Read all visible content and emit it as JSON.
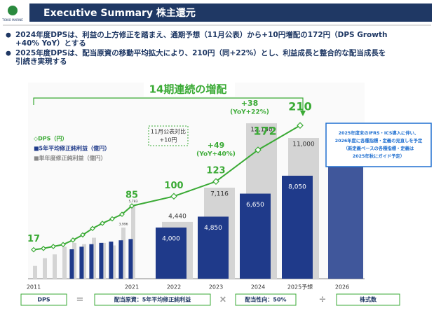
{
  "header": {
    "logo": "TOKIO MARINE",
    "title": "Executive Summary  株主還元"
  },
  "bullets": [
    [
      "2024年度DPSは、利益の上方修正を踏まえ、通期予想（11月公表）から+10円増配の172円（DPS Growth",
      "+40% YoY）とする"
    ],
    [
      "2025年度DPSは、配当原資の移動平均拡大により、210円（同+22%）とし、利益成長と整合的な配当成長を",
      "引続き実現する"
    ]
  ],
  "chart_data": {
    "type": "bar",
    "categories": [
      "2011",
      null,
      null,
      null,
      null,
      null,
      null,
      null,
      null,
      null,
      "2021",
      "2022",
      "2023",
      "2024",
      "2025予想",
      "2026"
    ],
    "ylim": [
      0,
      15000
    ],
    "y2lim": [
      -28,
      270
    ],
    "series": [
      {
        "name": "◇DPS（円）",
        "type": "line",
        "axis": "y2",
        "color": "#3aaa35",
        "values": [
          17,
          19,
          22,
          25,
          32,
          40,
          50,
          58,
          65,
          72,
          85,
          100,
          123,
          172,
          210,
          null
        ],
        "value_labels": [
          "17",
          null,
          null,
          null,
          null,
          null,
          null,
          null,
          null,
          null,
          "85",
          "100",
          "123",
          "172",
          "210",
          null
        ]
      },
      {
        "name": "■5年平均修正純利益（億円）",
        "color": "#1f3a8a",
        "values": [
          null,
          null,
          null,
          null,
          2300,
          2500,
          2700,
          2800,
          2900,
          3000,
          3100,
          4000,
          4850,
          6650,
          8050,
          null
        ],
        "value_labels": [
          null,
          null,
          null,
          null,
          null,
          null,
          null,
          null,
          null,
          null,
          null,
          "4,000",
          "4,850",
          "6,650",
          "8,050",
          null
        ]
      },
      {
        "name": "■単年度修正純利益（億円）",
        "color": "#d4d4d4",
        "values": [
          1000,
          1600,
          1900,
          2500,
          2800,
          2700,
          3200,
          2800,
          2600,
          3996,
          5783,
          4440,
          7116,
          12150,
          11000,
          null
        ],
        "value_labels": [
          null,
          null,
          null,
          null,
          null,
          null,
          null,
          null,
          null,
          "3,996",
          "5,783",
          "4,440",
          "7,116",
          "12,150",
          "11,000",
          null
        ]
      }
    ],
    "annotations": [
      "14期連続の増配",
      "+49",
      "(YoY+40%)",
      "+38",
      "(YoY+22%)",
      "11月公表対比",
      "+10円"
    ],
    "note": [
      "2025年度末のIFRS・ICS導入に伴い、",
      "2026年度に各種指標・定義の見直しを予定",
      "（新定義ベースの各種指標・定義は",
      "2025年秋にガイド予定）"
    ],
    "formula": [
      "DPS",
      "=",
      "配当原資：5年平均修正純利益",
      "×",
      "配当性向：50%",
      "÷",
      "株式数"
    ]
  }
}
